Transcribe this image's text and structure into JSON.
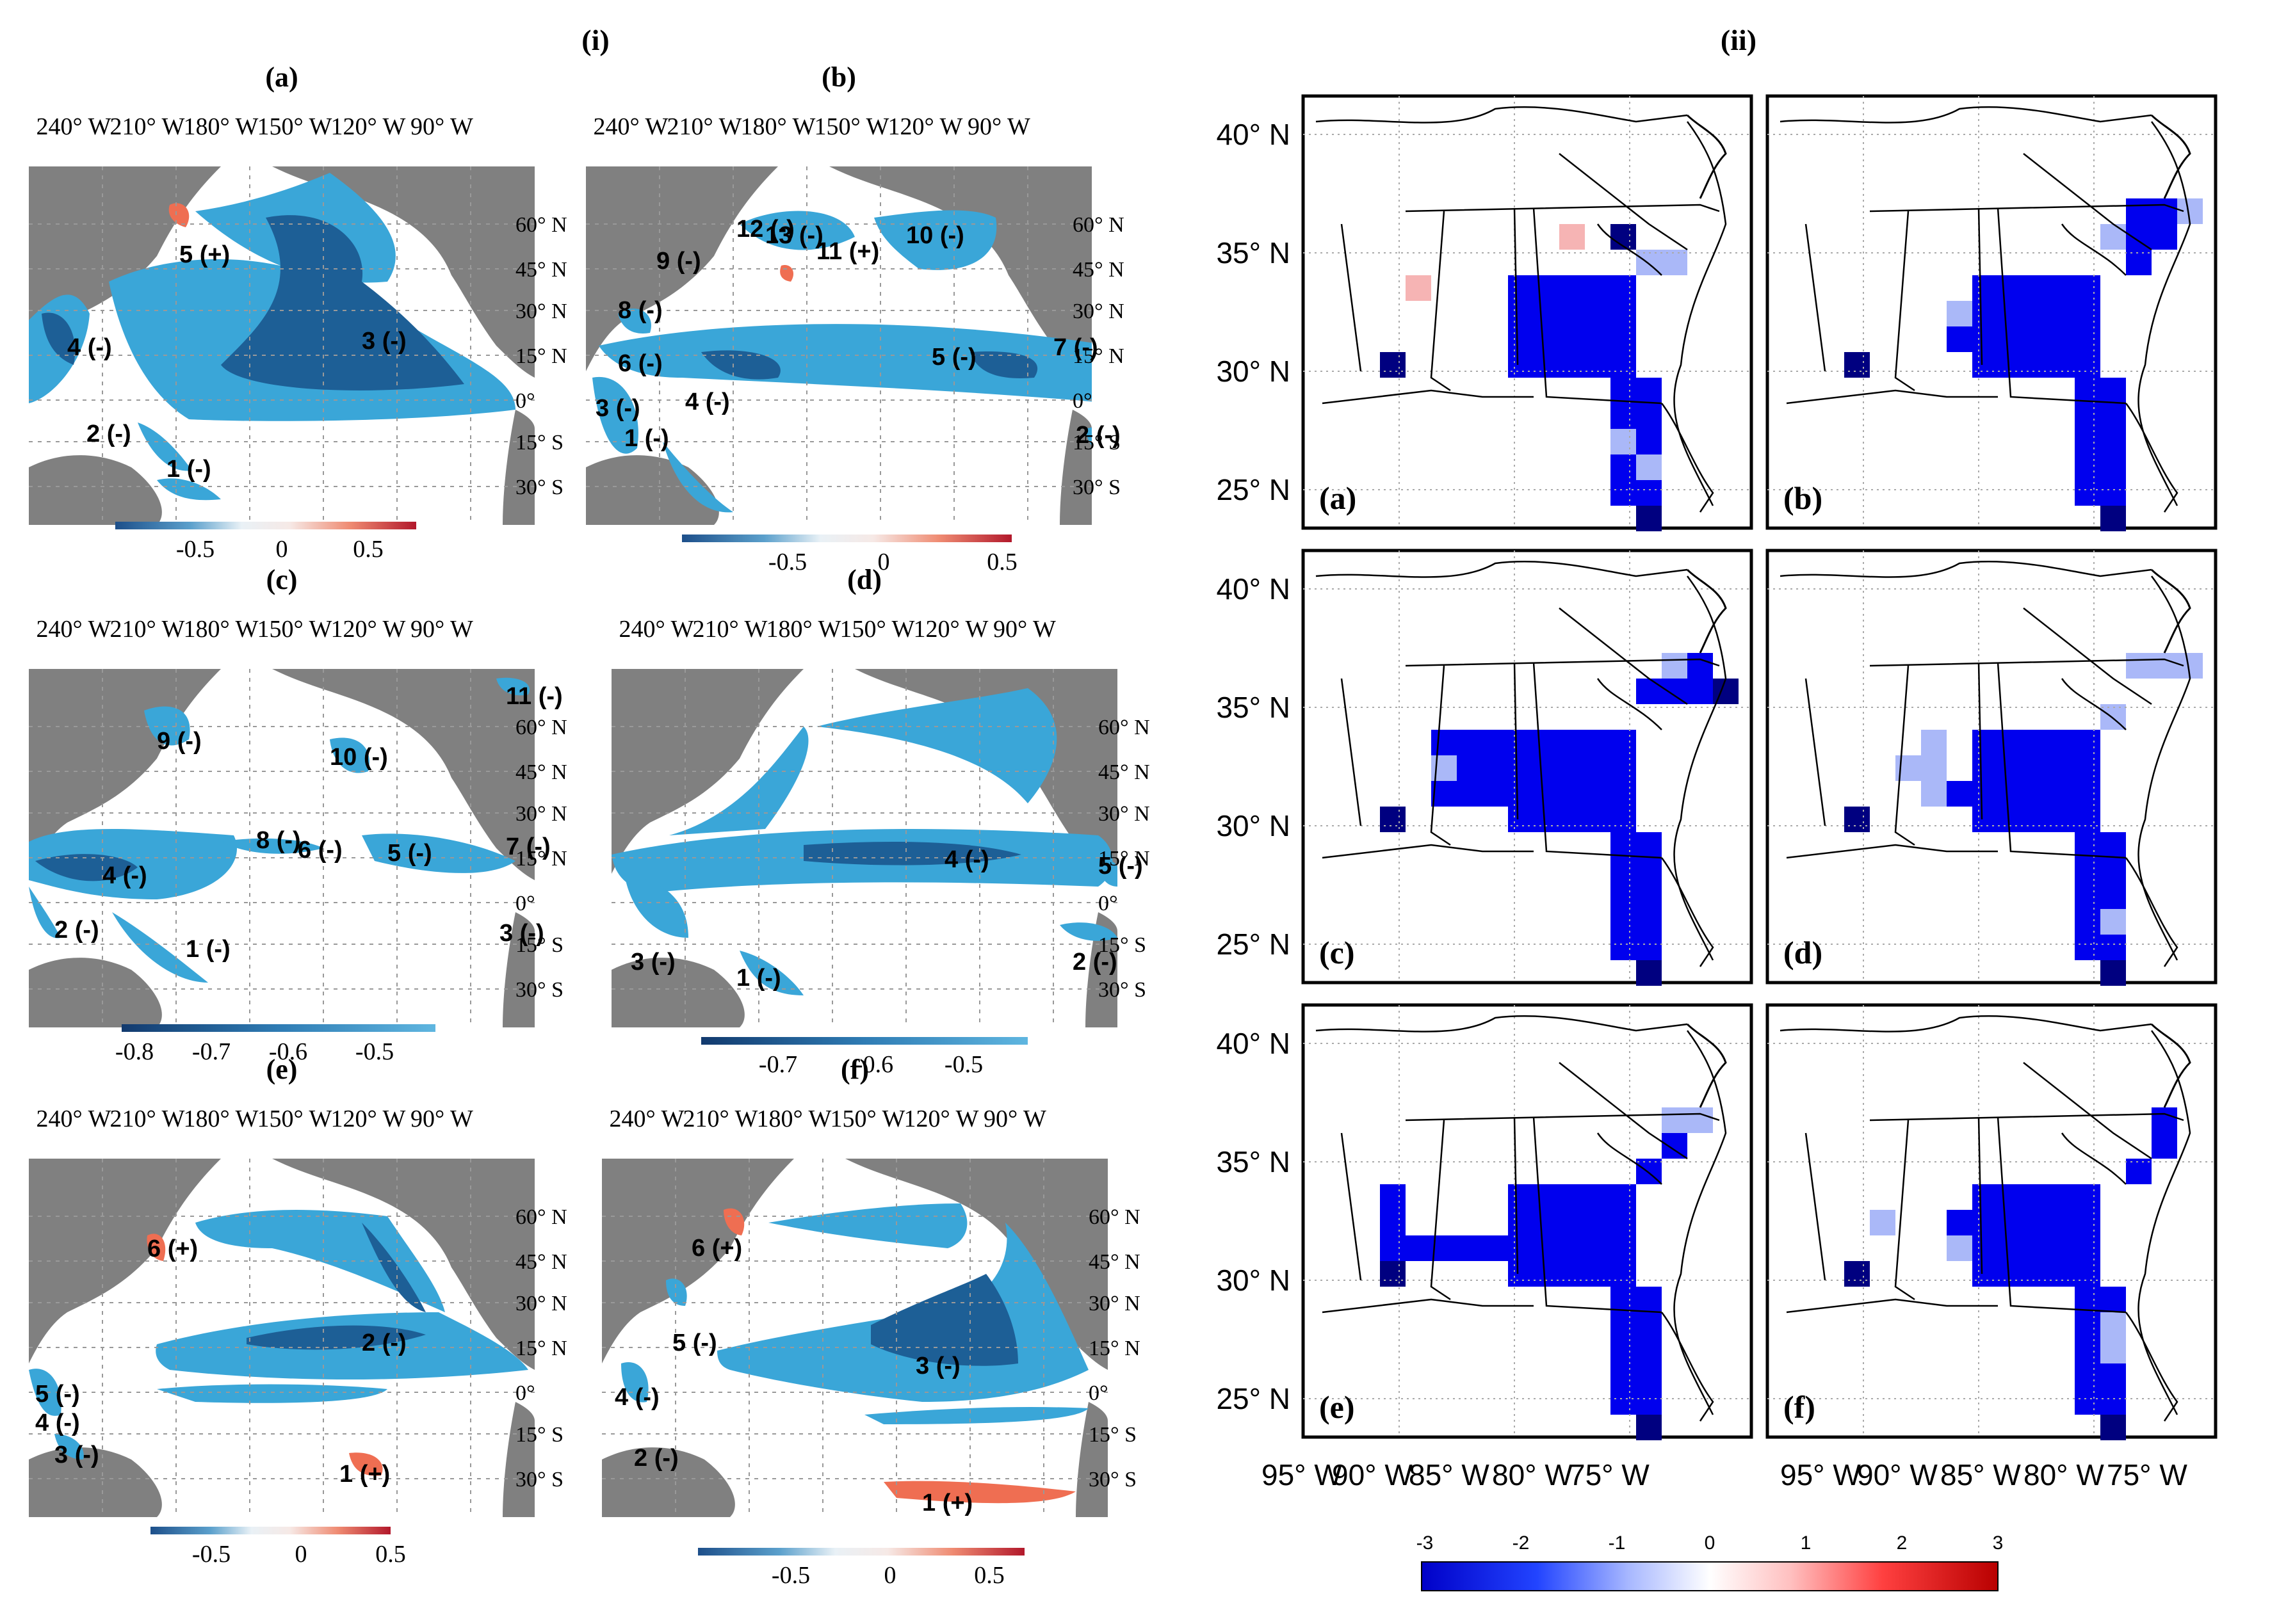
{
  "section_labels": {
    "left": "(i)",
    "right": "(ii)"
  },
  "left_panels": [
    {
      "label": "(a)",
      "lon_ticks": [
        "240° W",
        "210° W",
        "180° W",
        "150° W",
        "120° W",
        "90° W"
      ],
      "lat_ticks": [
        "60° N",
        "45° N",
        "30° N",
        "15° N",
        "0°",
        "15° S",
        "30° S"
      ],
      "regions": [
        "5 (+)",
        "4 (-)",
        "3 (-)",
        "2 (-)",
        "1 (-)"
      ],
      "colorbar_ticks": [
        "-0.5",
        "0",
        "0.5"
      ]
    },
    {
      "label": "(b)",
      "lon_ticks": [
        "240° W",
        "210° W",
        "180° W",
        "150° W",
        "120° W",
        "90° W"
      ],
      "lat_ticks": [
        "60° N",
        "45° N",
        "30° N",
        "15° N",
        "0°",
        "15° S",
        "30° S"
      ],
      "regions": [
        "13 (-)",
        "12 (-)",
        "11 (+)",
        "10 (-)",
        "9 (-)",
        "8 (-)",
        "7 (-)",
        "6 (-)",
        "5 (-)",
        "4 (-)",
        "3 (-)",
        "2 (-)",
        "1 (-)"
      ],
      "colorbar_ticks": [
        "-0.5",
        "0",
        "0.5"
      ]
    },
    {
      "label": "(c)",
      "lon_ticks": [
        "240° W",
        "210° W",
        "180° W",
        "150° W",
        "120° W",
        "90° W"
      ],
      "lat_ticks": [
        "60° N",
        "45° N",
        "30° N",
        "15° N",
        "0°",
        "15° S",
        "30° S"
      ],
      "regions": [
        "11 (-)",
        "10 (-)",
        "9 (-)",
        "8 (-)",
        "7 (-)",
        "6 (-)",
        "5 (-)",
        "4 (-)",
        "3 (-)",
        "2 (-)",
        "1 (-)"
      ],
      "colorbar_ticks": [
        "-0.8",
        "-0.7",
        "-0.6",
        "-0.5"
      ]
    },
    {
      "label": "(d)",
      "lon_ticks": [
        "240° W",
        "210° W",
        "180° W",
        "150° W",
        "120° W",
        "90° W"
      ],
      "lat_ticks": [
        "60° N",
        "45° N",
        "30° N",
        "15° N",
        "0°",
        "15° S",
        "30° S"
      ],
      "regions": [
        "5 (-)",
        "4 (-)",
        "3 (-)",
        "2 (-)",
        "1 (-)"
      ],
      "colorbar_ticks": [
        "-0.7",
        "-0.6",
        "-0.5"
      ]
    },
    {
      "label": "(e)",
      "lon_ticks": [
        "240° W",
        "210° W",
        "180° W",
        "150° W",
        "120° W",
        "90° W"
      ],
      "lat_ticks": [
        "60° N",
        "45° N",
        "30° N",
        "15° N",
        "0°",
        "15° S",
        "30° S"
      ],
      "regions": [
        "6 (+)",
        "5 (-)",
        "4 (-)",
        "3 (-)",
        "2 (-)",
        "1 (+)"
      ],
      "colorbar_ticks": [
        "-0.5",
        "0",
        "0.5"
      ]
    },
    {
      "label": "(f)",
      "lon_ticks": [
        "240° W",
        "210° W",
        "180° W",
        "150° W",
        "120° W",
        "90° W"
      ],
      "lat_ticks": [
        "60° N",
        "45° N",
        "30° N",
        "15° N",
        "0°",
        "15° S",
        "30° S"
      ],
      "regions": [
        "6 (+)",
        "5 (-)",
        "4 (-)",
        "3 (-)",
        "2 (-)",
        "1 (+)"
      ],
      "colorbar_ticks": [
        "-0.5",
        "0",
        "0.5"
      ]
    }
  ],
  "right_panels": {
    "labels": [
      "(a)",
      "(b)",
      "(c)",
      "(d)",
      "(e)",
      "(f)"
    ],
    "lat_ticks": [
      "40° N",
      "35° N",
      "30° N",
      "25° N"
    ],
    "lon_ticks": [
      "95° W",
      "90° W",
      "85° W",
      "80° W",
      "75° W"
    ],
    "colorbar_ticks": [
      "-3",
      "-2",
      "-1",
      "0",
      "1",
      "2",
      "3"
    ]
  },
  "colors": {
    "land": "#808080",
    "light_blue": "#3aa6d8",
    "dark_blue": "#1d5f96",
    "red": "#ef6e52",
    "grid_blue": "#0000ee",
    "grid_light": "#aab8f8",
    "grid_dark": "#000080",
    "grid_pink": "#f6b4b4"
  }
}
